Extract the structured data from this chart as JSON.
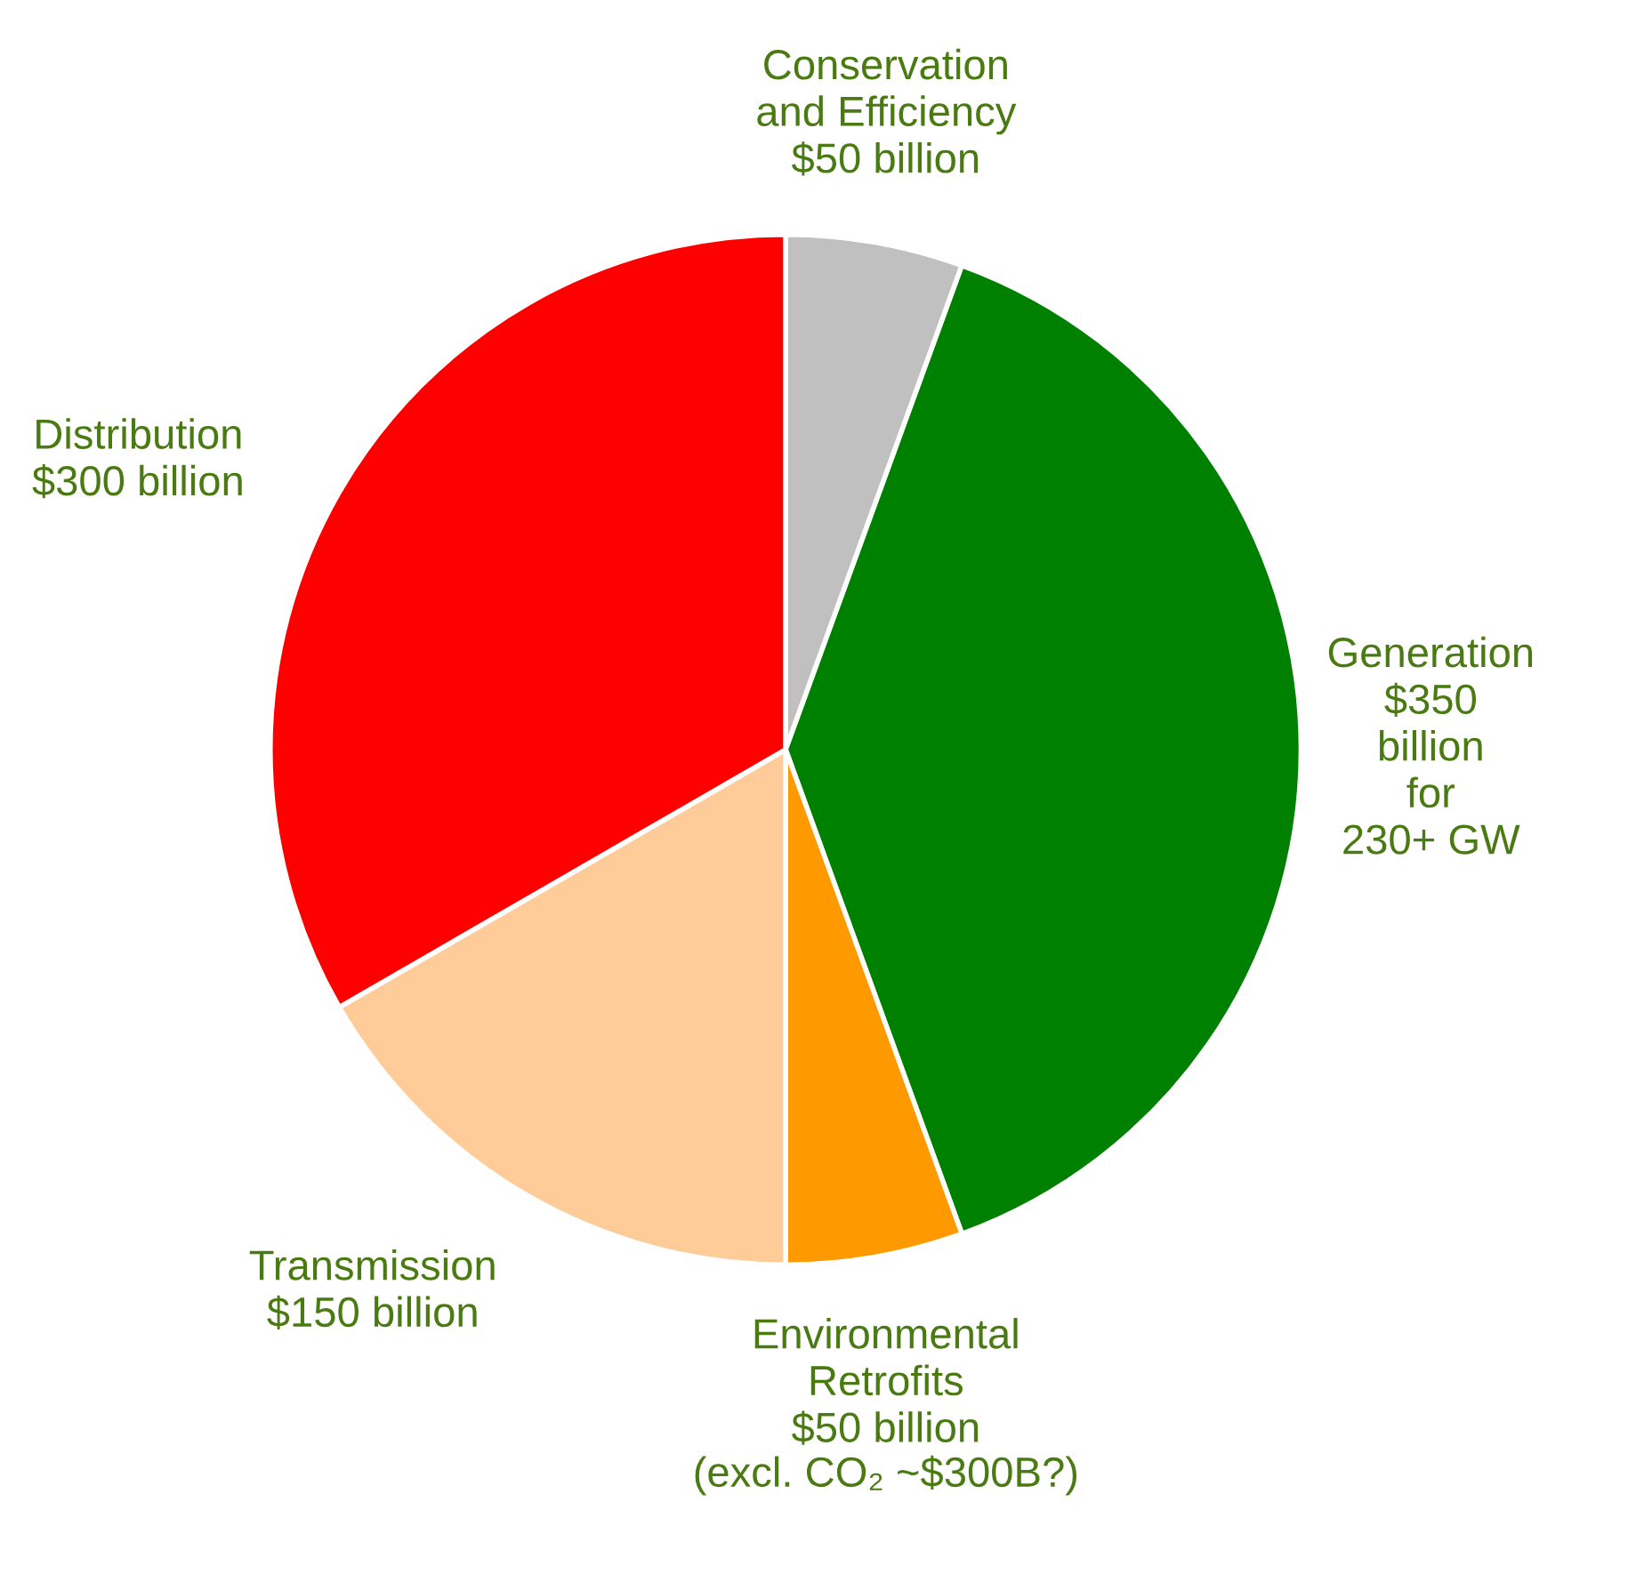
{
  "chart_data": {
    "type": "pie",
    "categories": [
      "Conservation\nand Efficiency",
      "Generation",
      "Environmental\nRetrofits",
      "Transmission",
      "Distribution"
    ],
    "values": [
      50,
      350,
      50,
      150,
      300
    ],
    "value_labels": [
      "$50 billion",
      "$350\nbillion\nfor\n230+ GW",
      "$50 billion",
      "$150 billion",
      "$300 billion"
    ],
    "colors": [
      "#c0c0c0",
      "#008000",
      "#ff9900",
      "#ffcc99",
      "#ff0000"
    ],
    "annotations": [
      "(excl. CO₂ ~$300B?)"
    ],
    "legend": false
  }
}
